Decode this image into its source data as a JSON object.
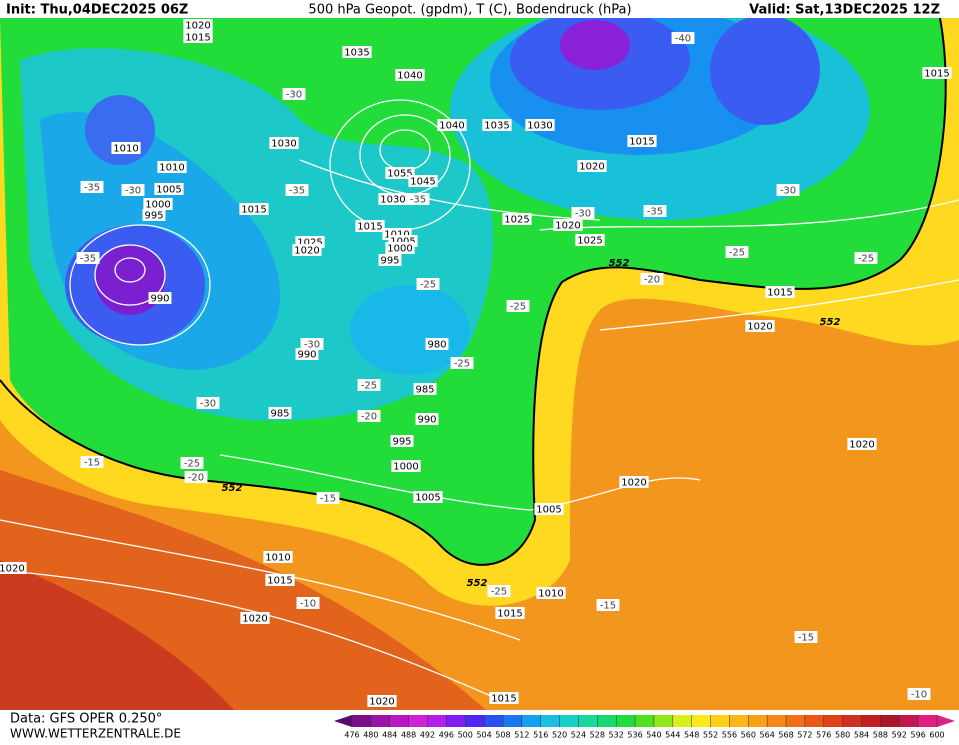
{
  "header": {
    "init": "Init: Thu,04DEC2025 06Z",
    "title": "500 hPa Geopot. (gpdm), T (C), Bodendruck (hPa)",
    "valid": "Valid: Sat,13DEC2025 12Z"
  },
  "footer": {
    "source": "Data: GFS OPER 0.250°",
    "site": "WWW.WETTERZENTRALE.DE"
  },
  "colorbar": {
    "ticks": [
      476,
      480,
      484,
      488,
      492,
      496,
      500,
      504,
      508,
      512,
      516,
      520,
      524,
      528,
      532,
      536,
      540,
      544,
      548,
      552,
      556,
      560,
      564,
      568,
      572,
      576,
      580,
      584,
      588,
      592,
      596,
      600
    ]
  },
  "map": {
    "isobar_labels": [
      "1020",
      "1015",
      "1035",
      "1040",
      "1040",
      "1035",
      "1030",
      "1015",
      "1020",
      "1010",
      "1010",
      "1005",
      "1000",
      "995",
      "1030",
      "1015",
      "1055",
      "1045",
      "1030",
      "1015",
      "1010",
      "1005",
      "1000",
      "995",
      "1025",
      "1020",
      "1025",
      "1020",
      "1025",
      "1015",
      "1020",
      "990",
      "990",
      "980",
      "985",
      "985",
      "990",
      "995",
      "1000",
      "1005",
      "1005",
      "1020",
      "1020",
      "1010",
      "1015",
      "1020",
      "1010",
      "1015",
      "1020",
      "1015",
      "1015",
      "1020"
    ],
    "temperature_labels": [
      "-30",
      "-35",
      "-30",
      "-35",
      "-35",
      "-30",
      "-35",
      "-40",
      "-30",
      "-25",
      "-25",
      "-20",
      "-35",
      "-25",
      "-25",
      "-30",
      "-25",
      "-25",
      "-30",
      "-20",
      "-15",
      "-25",
      "-20",
      "-15",
      "-10",
      "-25",
      "-15",
      "-15",
      "-10"
    ],
    "geopotential_labels": [
      "552",
      "552",
      "552",
      "552"
    ]
  }
}
